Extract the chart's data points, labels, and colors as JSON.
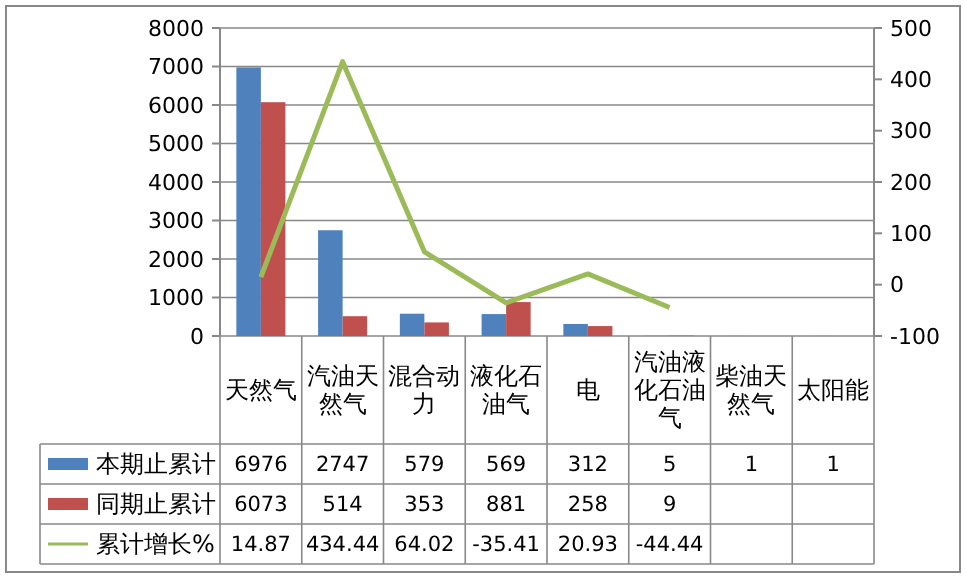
{
  "chart_data": {
    "type": "bar",
    "categories": [
      "天然气",
      "汽油天然气",
      "混合动力",
      "液化石油气",
      "电",
      "汽油液化石油气",
      "柴油天然气",
      "太阳能"
    ],
    "series": [
      {
        "name": "本期止累计",
        "color": "#4f81bd",
        "values": [
          6976,
          2747,
          579,
          569,
          312,
          5,
          1,
          1
        ]
      },
      {
        "name": "同期止累计",
        "color": "#c0504d",
        "values": [
          6073,
          514,
          353,
          881,
          258,
          9,
          null,
          null
        ]
      },
      {
        "name": "累计增长%",
        "type": "line",
        "axis": "y2",
        "color": "#9bbb59",
        "values": [
          14.87,
          434.44,
          64.02,
          -35.41,
          20.93,
          -44.44,
          null,
          null
        ]
      }
    ],
    "ylim": [
      0,
      8000
    ],
    "yticks": [
      0,
      1000,
      2000,
      3000,
      4000,
      5000,
      6000,
      7000,
      8000
    ],
    "y2lim": [
      -100,
      500
    ],
    "y2ticks": [
      -100,
      0,
      100,
      200,
      300,
      400,
      500
    ],
    "grid": "y",
    "legend": "bottom left",
    "data_labels": true,
    "marker": "none"
  }
}
